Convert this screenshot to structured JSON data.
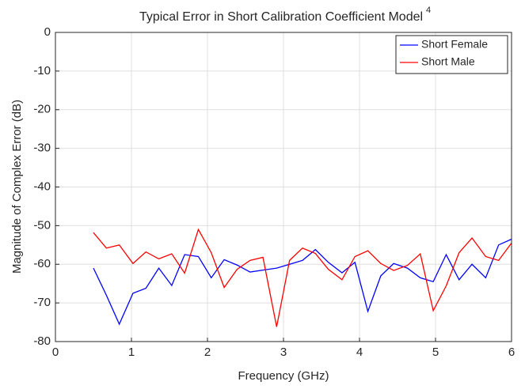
{
  "chart_data": {
    "type": "line",
    "title": "Typical Error in Short Calibration Coefficient Model",
    "title_superscript": "4",
    "x_label": "Frequency (GHz)",
    "y_label": "Magnitude of Complex Error (dB)",
    "x": [
      0.5,
      0.67,
      0.84,
      1.02,
      1.19,
      1.36,
      1.53,
      1.7,
      1.88,
      2.05,
      2.22,
      2.39,
      2.56,
      2.73,
      2.91,
      3.08,
      3.25,
      3.42,
      3.59,
      3.77,
      3.94,
      4.11,
      4.28,
      4.45,
      4.63,
      4.8,
      4.97,
      5.14,
      5.31,
      5.48,
      5.66,
      5.83,
      6.0
    ],
    "series": [
      {
        "name": "Short Female",
        "color": "#0000ff",
        "values": [
          -61,
          -68,
          -75.5,
          -67.5,
          -66.2,
          -61,
          -65.5,
          -57.5,
          -58,
          -63.5,
          -58.8,
          -60.2,
          -62,
          -61.5,
          -61,
          -60,
          -59,
          -56.2,
          -59.5,
          -62.2,
          -59.5,
          -72.2,
          -63,
          -59.8,
          -61,
          -63.5,
          -64.5,
          -57.5,
          -64,
          -60,
          -63.5,
          -55,
          -53.5
        ]
      },
      {
        "name": "Short Male",
        "color": "#ff0000",
        "values": [
          -51.8,
          -55.8,
          -55,
          -59.8,
          -56.8,
          -58.6,
          -57.3,
          -62.3,
          -51,
          -57,
          -66,
          -61.3,
          -59,
          -58.2,
          -76.2,
          -59,
          -55.8,
          -57.2,
          -61.3,
          -64,
          -58,
          -56.5,
          -59.8,
          -61.6,
          -60.3,
          -57.3,
          -72,
          -65.6,
          -57,
          -53.2,
          -58,
          -59,
          -54.5
        ]
      }
    ],
    "xlim": [
      0,
      6
    ],
    "xticks": [
      0,
      1,
      2,
      3,
      4,
      5,
      6
    ],
    "ylim": [
      -80,
      0
    ],
    "yticks": [
      -80,
      -70,
      -60,
      -50,
      -40,
      -30,
      -20,
      -10,
      0
    ],
    "grid": true,
    "legend": "upper right"
  }
}
